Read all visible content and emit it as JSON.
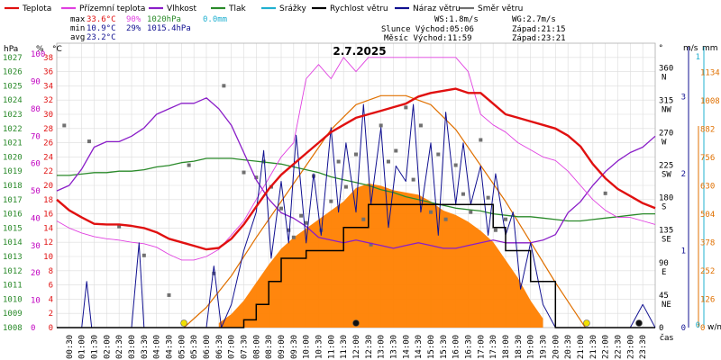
{
  "legend": [
    {
      "label": "Teplota",
      "color": "#e01010"
    },
    {
      "label": "Přízemní teplota",
      "color": "#e040e0"
    },
    {
      "label": "Vlhkost",
      "color": "#8a1ec8"
    },
    {
      "label": "Tlak",
      "color": "#2a8a2a"
    },
    {
      "label": "Srážky",
      "color": "#20b0d0"
    },
    {
      "label": "Rychlost větru",
      "color": "#000000"
    },
    {
      "label": "Náraz větru",
      "color": "#101090"
    },
    {
      "label": "Směr větru",
      "color": "#707070"
    }
  ],
  "stats": {
    "max_label": "max",
    "max_temp": "33.6°C",
    "max_hum": "90%",
    "max_press": "1020hPa",
    "max_rain": "0.0mm",
    "min_label": "min",
    "min_temp": "10.9°C",
    "min_hum": "29%",
    "min_press": "1015.4hPa",
    "avg_label": "avg",
    "avg_temp": "23.2°C"
  },
  "wind_info": {
    "ws": "WS:1.8m/s",
    "wg": "WG:2.7m/s"
  },
  "sun_info": {
    "sun": "Slunce Východ:05:06",
    "sun_set": "Západ:21:15",
    "moon": "Měsíc Východ:11:59",
    "moon_set": "Západ:23:21"
  },
  "title": "2.7.2025",
  "axes": {
    "hpa_unit": "hPa",
    "pct_unit": "%",
    "c_unit": "°C",
    "deg_unit": "°",
    "ms_unit": "m/s",
    "mm_unit": "mm",
    "wm2_unit": "w/m²",
    "time_unit": "čas",
    "hpa_ticks": [
      "1027",
      "1026",
      "1025",
      "1024",
      "1023",
      "1022",
      "1021",
      "1020",
      "1019",
      "1018",
      "1017",
      "1016",
      "1015",
      "1014",
      "1013",
      "1012",
      "1011",
      "1010",
      "1009",
      "1008"
    ],
    "pct_ticks": [
      "100",
      "90",
      "80",
      "70",
      "60",
      "50",
      "40",
      "30",
      "20",
      "10",
      "0"
    ],
    "c_ticks": [
      "38",
      "36",
      "34",
      "32",
      "30",
      "28",
      "26",
      "24",
      "22",
      "20",
      "18",
      "16",
      "14",
      "12",
      "10",
      "8",
      "6",
      "4",
      "2",
      "0"
    ],
    "dir_ticks": [
      {
        "deg": "360",
        "dir": "N"
      },
      {
        "deg": "315",
        "dir": "NW"
      },
      {
        "deg": "270",
        "dir": "W"
      },
      {
        "deg": "225",
        "dir": "SW"
      },
      {
        "deg": "180",
        "dir": "S"
      },
      {
        "deg": "135",
        "dir": "SE"
      },
      {
        "deg": "90",
        "dir": "E"
      },
      {
        "deg": "45",
        "dir": "NE"
      },
      {
        "deg": "0",
        "dir": ""
      }
    ],
    "ms_ticks": [
      "3",
      "2",
      "1",
      "0"
    ],
    "mm_ticks": [
      "1",
      "0"
    ],
    "wm2_ticks": [
      "1134",
      "1008",
      "882",
      "756",
      "630",
      "504",
      "378",
      "252",
      "126",
      "0"
    ],
    "time_ticks": [
      "00:30",
      "01:00",
      "01:30",
      "02:00",
      "02:30",
      "03:00",
      "03:30",
      "04:00",
      "04:30",
      "05:00",
      "05:30",
      "06:00",
      "06:30",
      "07:00",
      "07:30",
      "08:00",
      "08:30",
      "09:00",
      "09:30",
      "10:00",
      "10:30",
      "11:00",
      "11:30",
      "12:00",
      "12:30",
      "13:00",
      "13:30",
      "14:00",
      "14:30",
      "15:00",
      "15:30",
      "16:00",
      "16:30",
      "17:00",
      "17:30",
      "18:00",
      "18:30",
      "19:00",
      "19:30",
      "20:00",
      "20:30",
      "21:00",
      "21:30",
      "22:00",
      "22:30",
      "23:00",
      "23:30"
    ]
  },
  "chart_data": {
    "type": "line",
    "title": "2.7.2025",
    "x_unit": "hour",
    "xlim": [
      0,
      24
    ],
    "series": [
      {
        "name": "Teplota",
        "unit": "°C",
        "color": "#e01010",
        "x": [
          0,
          0.5,
          1,
          1.5,
          2,
          2.5,
          3,
          3.5,
          4,
          4.5,
          5,
          5.5,
          6,
          6.5,
          7,
          7.5,
          8,
          8.5,
          9,
          9.5,
          10,
          10.5,
          11,
          11.5,
          12,
          12.5,
          13,
          13.5,
          14,
          14.5,
          15,
          15.5,
          16,
          16.5,
          17,
          17.5,
          18,
          18.5,
          19,
          19.5,
          20,
          20.5,
          21,
          21.5,
          22,
          22.5,
          23,
          23.5,
          24
        ],
        "y": [
          18,
          16.5,
          15.5,
          14.6,
          14.5,
          14.5,
          14.3,
          14,
          13.4,
          12.5,
          12,
          11.5,
          11,
          11.2,
          12.5,
          14.5,
          17,
          19.5,
          21.5,
          23,
          24.5,
          26,
          27.5,
          28.5,
          29.5,
          30,
          30.5,
          31,
          31.5,
          32.5,
          33,
          33.3,
          33.6,
          33,
          33,
          31.5,
          30,
          29.5,
          29,
          28.5,
          28,
          27,
          25.5,
          23,
          21,
          19.5,
          18.5,
          17.5,
          16.8
        ]
      },
      {
        "name": "Přízemní teplota",
        "unit": "°C",
        "color": "#e040e0",
        "x": [
          0,
          0.5,
          1,
          1.5,
          2,
          2.5,
          3,
          3.5,
          4,
          4.5,
          5,
          5.5,
          6,
          6.5,
          7,
          7.5,
          8,
          8.5,
          9,
          9.5,
          10,
          10.5,
          11,
          11.5,
          12,
          12.5,
          13,
          13.5,
          14,
          14.5,
          15,
          15.5,
          16,
          16.5,
          17,
          17.5,
          18,
          18.5,
          19,
          19.5,
          20,
          20.5,
          21,
          21.5,
          22,
          22.5,
          23,
          23.5,
          24
        ],
        "y": [
          15,
          14,
          13.3,
          12.8,
          12.5,
          12.3,
          12,
          11.8,
          11.3,
          10.3,
          9.5,
          9.5,
          10,
          11,
          13,
          15,
          18,
          21,
          24,
          26,
          35,
          37,
          35,
          38,
          36,
          38,
          38,
          38,
          38,
          38,
          38,
          38,
          38,
          36,
          30,
          28.5,
          27.5,
          26,
          25,
          24,
          23.5,
          22,
          20,
          18,
          16.5,
          15.5,
          15.5,
          15,
          14.5
        ]
      },
      {
        "name": "Vlhkost",
        "unit": "%",
        "color": "#8a1ec8",
        "x": [
          0,
          0.5,
          1,
          1.5,
          2,
          2.5,
          3,
          3.5,
          4,
          4.5,
          5,
          5.5,
          6,
          6.5,
          7,
          7.5,
          8,
          8.5,
          9,
          9.5,
          10,
          10.5,
          11,
          11.5,
          12,
          12.5,
          13,
          13.5,
          14,
          14.5,
          15,
          15.5,
          16,
          16.5,
          17,
          17.5,
          18,
          18.5,
          19,
          19.5,
          20,
          20.5,
          21,
          21.5,
          22,
          22.5,
          23,
          23.5,
          24
        ],
        "y": [
          50,
          52,
          58,
          66,
          68,
          68,
          70,
          73,
          78,
          80,
          82,
          82,
          84,
          80,
          74,
          64,
          54,
          47,
          42,
          40,
          37,
          33,
          32,
          31,
          32,
          31,
          30,
          29,
          30,
          31,
          30,
          29,
          29,
          30,
          31,
          32,
          31,
          31,
          31,
          32,
          34,
          42,
          46,
          52,
          57,
          61,
          64,
          66,
          70
        ]
      },
      {
        "name": "Tlak",
        "unit": "hPa",
        "color": "#2a8a2a",
        "x": [
          0,
          0.5,
          1,
          1.5,
          2,
          2.5,
          3,
          3.5,
          4,
          4.5,
          5,
          5.5,
          6,
          6.5,
          7,
          7.5,
          8,
          8.5,
          9,
          9.5,
          10,
          10.5,
          11,
          11.5,
          12,
          12.5,
          13,
          13.5,
          14,
          14.5,
          15,
          15.5,
          16,
          16.5,
          17,
          17.5,
          18,
          18.5,
          19,
          19.5,
          20,
          20.5,
          21,
          21.5,
          22,
          22.5,
          23,
          23.5,
          24
        ],
        "y": [
          1018.7,
          1018.7,
          1018.8,
          1018.9,
          1018.9,
          1019,
          1019,
          1019.1,
          1019.3,
          1019.4,
          1019.6,
          1019.7,
          1019.9,
          1019.9,
          1019.9,
          1019.8,
          1019.7,
          1019.6,
          1019.5,
          1019.3,
          1019.1,
          1018.9,
          1018.6,
          1018.4,
          1018.2,
          1018,
          1017.7,
          1017.5,
          1017.2,
          1017,
          1016.8,
          1016.6,
          1016.4,
          1016.3,
          1016.2,
          1016,
          1015.9,
          1015.8,
          1015.8,
          1015.7,
          1015.6,
          1015.5,
          1015.5,
          1015.6,
          1015.7,
          1015.8,
          1015.9,
          1016,
          1016
        ]
      },
      {
        "name": "Rychlost větru",
        "unit": "m/s",
        "color": "#000000",
        "x": [
          0,
          1,
          1.5,
          2,
          3,
          4,
          5,
          6,
          7,
          7.5,
          8,
          8.5,
          9,
          10,
          11,
          11.5,
          12,
          12.5,
          13,
          14,
          15,
          16,
          17,
          17.5,
          18,
          19,
          20,
          21,
          22,
          23,
          24
        ],
        "y": [
          0,
          0,
          0,
          0,
          0,
          0,
          0,
          0,
          0,
          0.1,
          0.3,
          0.6,
          0.9,
          1,
          1,
          1.3,
          1.3,
          1.6,
          1.6,
          1.6,
          1.6,
          1.6,
          1.6,
          1.3,
          1,
          0.6,
          0,
          0,
          0,
          0,
          0
        ]
      },
      {
        "name": "Náraz větru",
        "unit": "m/s",
        "color": "#101090",
        "x": [
          0,
          1,
          1.2,
          1.4,
          2,
          3,
          3.3,
          3.5,
          4,
          5,
          6,
          6.3,
          6.6,
          7,
          7.5,
          8,
          8.3,
          8.6,
          9,
          9.3,
          9.6,
          10,
          10.3,
          10.6,
          11,
          11.3,
          11.6,
          12,
          12.3,
          12.6,
          13,
          13.3,
          13.6,
          14,
          14.3,
          14.6,
          15,
          15.3,
          15.6,
          16,
          16.3,
          16.6,
          17,
          17.3,
          17.6,
          18,
          18.3,
          18.6,
          19,
          19.5,
          20,
          21,
          22,
          23,
          23.5,
          24
        ],
        "y": [
          0,
          0,
          0.6,
          0,
          0,
          0,
          1.1,
          0,
          0,
          0,
          0,
          0.8,
          0,
          0.3,
          1,
          1.5,
          2.3,
          0.9,
          1.9,
          1.1,
          2.5,
          1.1,
          2,
          1.2,
          2.6,
          1.5,
          2.4,
          1.5,
          2.9,
          1.6,
          2.6,
          1.3,
          2.1,
          1.9,
          2.9,
          1.5,
          2.4,
          1.2,
          2.8,
          1.6,
          2.4,
          1.6,
          2.1,
          1.2,
          2,
          1.2,
          1.5,
          0.5,
          1.1,
          0.3,
          0,
          0,
          0,
          0,
          0.3,
          0
        ]
      },
      {
        "name": "Směr větru",
        "unit": "°",
        "color": "#707070",
        "x": [
          0.3,
          1.3,
          2.5,
          3.5,
          4.5,
          5.3,
          6.3,
          6.7,
          7.5,
          8,
          8.3,
          8.6,
          9,
          9.3,
          9.5,
          9.8,
          10,
          10.3,
          10.6,
          11,
          11.3,
          11.6,
          12,
          12.3,
          12.6,
          13,
          13.3,
          13.6,
          14,
          14.3,
          14.6,
          15,
          15.3,
          15.6,
          16,
          16.3,
          16.6,
          17,
          17.3,
          17.6,
          18,
          22
        ],
        "y": [
          280,
          258,
          140,
          100,
          45,
          225,
          75,
          335,
          215,
          208,
          230,
          195,
          165,
          135,
          125,
          155,
          145,
          210,
          135,
          175,
          230,
          195,
          240,
          150,
          115,
          280,
          230,
          245,
          305,
          205,
          280,
          160,
          240,
          150,
          225,
          185,
          160,
          260,
          180,
          135,
          150,
          186
        ]
      }
    ],
    "solar_radiation": {
      "name": "Sluneční záření",
      "unit": "w/m²",
      "color": "#ff8000",
      "x": [
        6.5,
        7,
        7.5,
        8,
        8.5,
        9,
        9.5,
        10,
        10.5,
        11,
        11.5,
        12,
        12.5,
        13,
        13.5,
        14,
        14.5,
        15,
        15.5,
        16,
        16.5,
        17,
        17.5,
        18,
        18.5,
        19,
        19.5
      ],
      "y": [
        20,
        60,
        120,
        200,
        280,
        350,
        400,
        440,
        480,
        520,
        560,
        620,
        640,
        630,
        610,
        600,
        590,
        560,
        520,
        500,
        470,
        430,
        380,
        300,
        220,
        120,
        40
      ]
    },
    "theoretical_radiation": {
      "color": "#e07000",
      "x": [
        5.1,
        6,
        7,
        8,
        9,
        10,
        11,
        12,
        13,
        14,
        15,
        16,
        17,
        18,
        19,
        20,
        21.2
      ],
      "y": [
        0,
        90,
        230,
        400,
        560,
        720,
        880,
        990,
        1030,
        1030,
        990,
        880,
        720,
        560,
        380,
        200,
        0
      ]
    },
    "markers": [
      {
        "name": "Slunce Východ",
        "x": 5.1,
        "color": "#f0e000"
      },
      {
        "name": "Měsíc Východ",
        "x": 12.0,
        "color": "#101010"
      },
      {
        "name": "Slunce Západ",
        "x": 21.25,
        "color": "#f0e000"
      },
      {
        "name": "Měsíc Západ",
        "x": 23.35,
        "color": "#101010"
      }
    ]
  }
}
